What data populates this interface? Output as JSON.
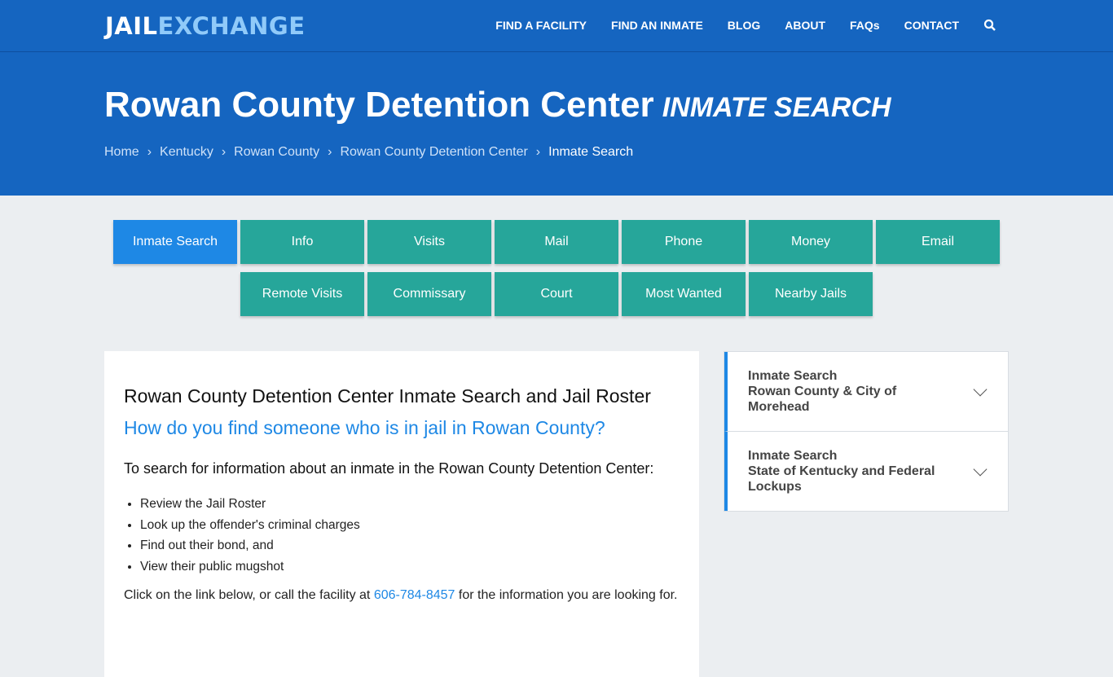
{
  "brand": {
    "part1": "JAIL",
    "part2": "EXCHANGE"
  },
  "nav": [
    "FIND A FACILITY",
    "FIND AN INMATE",
    "BLOG",
    "ABOUT",
    "FAQs",
    "CONTACT"
  ],
  "hero": {
    "title": "Rowan County Detention Center",
    "subtitle": "INMATE SEARCH",
    "breadcrumb": [
      "Home",
      "Kentucky",
      "Rowan County",
      "Rowan County Detention Center",
      "Inmate Search"
    ]
  },
  "tabs": [
    "Inmate Search",
    "Info",
    "Visits",
    "Mail",
    "Phone",
    "Money",
    "Email",
    "Remote Visits",
    "Commissary",
    "Court",
    "Most Wanted",
    "Nearby Jails"
  ],
  "main": {
    "heading": "Rowan County Detention Center Inmate Search and Jail Roster",
    "question": "How do you find someone who is in jail in Rowan County?",
    "intro": "To search for information about an inmate in the Rowan County Detention Center:",
    "bullets": [
      "Review the Jail Roster",
      "Look up the offender's criminal charges",
      "Find out their bond, and",
      "View their public mugshot"
    ],
    "call_pre": "Click on the link below, or call the facility at ",
    "phone": "606-784-8457",
    "call_post": " for the information you are looking for."
  },
  "sidebar": [
    {
      "line1": "Inmate Search",
      "line2": "Rowan County & City of Morehead"
    },
    {
      "line1": "Inmate Search",
      "line2": "State of Kentucky and Federal Lockups"
    }
  ]
}
